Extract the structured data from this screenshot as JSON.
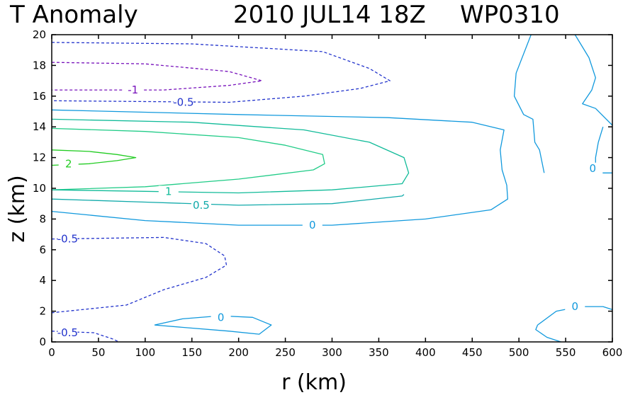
{
  "header": {
    "title": "T Anomaly",
    "datetime": "2010 JUL14 18Z",
    "storm_id": "WP0310"
  },
  "chart_data": {
    "type": "contour",
    "title": "T Anomaly",
    "xlabel": "r (km)",
    "ylabel": "z (km)",
    "xlim": [
      0,
      600
    ],
    "ylim": [
      0,
      20
    ],
    "xticks": [
      0,
      50,
      100,
      150,
      200,
      250,
      300,
      350,
      400,
      450,
      500,
      550,
      600
    ],
    "yticks": [
      0,
      2,
      4,
      6,
      8,
      10,
      12,
      14,
      16,
      18,
      20
    ],
    "grid": false,
    "levels": [
      {
        "value": 2,
        "color": "#22cc22",
        "dashed": false,
        "label": "2"
      },
      {
        "value": 1.5,
        "color": "#22cc88",
        "dashed": false,
        "label": ""
      },
      {
        "value": 1,
        "color": "#11bb99",
        "dashed": false,
        "label": "1"
      },
      {
        "value": 0.5,
        "color": "#11aaaa",
        "dashed": false,
        "label": "0.5"
      },
      {
        "value": 0,
        "color": "#1199dd",
        "dashed": false,
        "label": "0"
      },
      {
        "value": -0.5,
        "color": "#2233cc",
        "dashed": true,
        "label": "-0.5"
      },
      {
        "value": -1,
        "color": "#7711bb",
        "dashed": true,
        "label": "-1"
      }
    ],
    "contours": [
      {
        "level": 2,
        "points": [
          [
            0,
            12.5
          ],
          [
            40,
            12.4
          ],
          [
            70,
            12.2
          ],
          [
            90,
            12
          ],
          [
            70,
            11.8
          ],
          [
            40,
            11.6
          ],
          [
            0,
            11.5
          ]
        ],
        "label_at": [
          18,
          11.6
        ]
      },
      {
        "level": 1.5,
        "points": [
          [
            0,
            13.9
          ],
          [
            100,
            13.7
          ],
          [
            200,
            13.3
          ],
          [
            250,
            12.8
          ],
          [
            290,
            12.2
          ],
          [
            292,
            11.6
          ],
          [
            280,
            11.2
          ],
          [
            200,
            10.6
          ],
          [
            100,
            10.1
          ],
          [
            0,
            9.9
          ]
        ]
      },
      {
        "level": 1,
        "points": [
          [
            0,
            14.5
          ],
          [
            150,
            14.3
          ],
          [
            270,
            13.8
          ],
          [
            340,
            13
          ],
          [
            377,
            12
          ],
          [
            382,
            11
          ],
          [
            375,
            10.3
          ],
          [
            300,
            9.9
          ],
          [
            200,
            9.7
          ],
          [
            100,
            9.8
          ],
          [
            0,
            9.9
          ]
        ],
        "label_at": [
          125,
          9.8
        ]
      },
      {
        "level": 0.5,
        "points": [
          [
            0,
            9.3
          ],
          [
            100,
            9.1
          ],
          [
            200,
            8.9
          ],
          [
            300,
            9.0
          ],
          [
            375,
            9.5
          ],
          [
            377,
            9.6
          ]
        ],
        "label_at": [
          160,
          8.9
        ]
      },
      {
        "level": 0,
        "points": [
          [
            0,
            15.1
          ],
          [
            200,
            14.8
          ],
          [
            360,
            14.6
          ],
          [
            450,
            14.3
          ],
          [
            484,
            13.8
          ],
          [
            480,
            12.5
          ],
          [
            482,
            11.2
          ],
          [
            487,
            10.2
          ],
          [
            488,
            9.3
          ],
          [
            470,
            8.6
          ],
          [
            400,
            8.0
          ],
          [
            300,
            7.6
          ],
          [
            200,
            7.6
          ],
          [
            100,
            7.9
          ],
          [
            0,
            8.5
          ]
        ],
        "label_at": [
          279,
          7.6
        ]
      },
      {
        "level": 0,
        "points": [
          [
            513,
            20
          ],
          [
            497,
            17.5
          ],
          [
            495,
            16
          ],
          [
            505,
            14.8
          ],
          [
            515,
            14.5
          ],
          [
            517,
            13
          ],
          [
            522,
            12.5
          ],
          [
            527,
            11
          ]
        ]
      },
      {
        "level": 0,
        "points": [
          [
            560,
            20
          ],
          [
            575,
            18.5
          ],
          [
            582,
            17.2
          ],
          [
            578,
            16.4
          ],
          [
            568,
            15.5
          ],
          [
            582,
            15.2
          ],
          [
            600,
            14.1
          ]
        ]
      },
      {
        "level": 0,
        "points": [
          [
            590,
            14
          ],
          [
            585,
            13
          ],
          [
            582,
            12
          ],
          [
            582,
            11
          ],
          [
            600,
            11
          ]
        ],
        "label_at": [
          579,
          11.3
        ]
      },
      {
        "level": 0,
        "points": [
          [
            110,
            1.1
          ],
          [
            140,
            1.5
          ],
          [
            180,
            1.7
          ],
          [
            215,
            1.6
          ],
          [
            235,
            1.1
          ],
          [
            222,
            0.5
          ],
          [
            190,
            0.7
          ],
          [
            150,
            0.9
          ],
          [
            110,
            1.1
          ]
        ],
        "label_at": [
          181,
          1.6
        ]
      },
      {
        "level": 0,
        "points": [
          [
            520,
            1.1
          ],
          [
            540,
            2.0
          ],
          [
            565,
            2.3
          ],
          [
            590,
            2.3
          ],
          [
            600,
            2.1
          ]
        ],
        "label_at": [
          560,
          2.3
        ]
      },
      {
        "level": 0,
        "points": [
          [
            520,
            1.1
          ],
          [
            518,
            0.8
          ],
          [
            530,
            0.3
          ],
          [
            545,
            0
          ]
        ]
      },
      {
        "level": -0.5,
        "points": [
          [
            0,
            19.5
          ],
          [
            150,
            19.4
          ],
          [
            290,
            18.9
          ],
          [
            340,
            17.8
          ],
          [
            362,
            17.0
          ],
          [
            330,
            16.5
          ],
          [
            270,
            16.0
          ],
          [
            190,
            15.6
          ],
          [
            0,
            15.7
          ]
        ],
        "label_at": [
          141,
          15.6
        ]
      },
      {
        "level": -0.5,
        "points": [
          [
            0,
            6.7
          ],
          [
            120,
            6.8
          ],
          [
            165,
            6.4
          ],
          [
            185,
            5.6
          ],
          [
            187,
            5.0
          ],
          [
            165,
            4.2
          ],
          [
            120,
            3.4
          ],
          [
            80,
            2.4
          ],
          [
            0,
            1.9
          ]
        ],
        "label_at": [
          17,
          6.7
        ]
      },
      {
        "level": -0.5,
        "points": [
          [
            0,
            0.7
          ],
          [
            45,
            0.6
          ],
          [
            65,
            0.2
          ],
          [
            72,
            0
          ]
        ],
        "label_at": [
          17,
          0.6
        ]
      },
      {
        "level": -1,
        "points": [
          [
            0,
            18.2
          ],
          [
            100,
            18.1
          ],
          [
            190,
            17.6
          ],
          [
            225,
            17.0
          ],
          [
            190,
            16.7
          ],
          [
            120,
            16.4
          ],
          [
            0,
            16.4
          ]
        ],
        "label_at": [
          87,
          16.4
        ]
      }
    ]
  }
}
